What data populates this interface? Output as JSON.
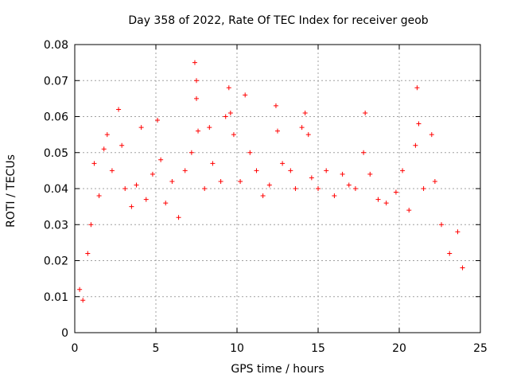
{
  "chart_data": {
    "type": "scatter",
    "title": "Day 358 of 2022, Rate Of TEC Index for receiver geob",
    "xlabel": "GPS time / hours",
    "ylabel": "ROTI / TECUs",
    "xlim": [
      0,
      25
    ],
    "ylim": [
      0,
      0.08
    ],
    "x_ticks": [
      0,
      5,
      10,
      15,
      20,
      25
    ],
    "y_ticks": [
      0,
      0.01,
      0.02,
      0.03,
      0.04,
      0.05,
      0.06,
      0.07,
      0.08
    ],
    "x_tick_labels": [
      "0",
      "5",
      "10",
      "15",
      "20",
      "25"
    ],
    "y_tick_labels": [
      "0",
      "0.01",
      "0.02",
      "0.03",
      "0.04",
      "0.05",
      "0.06",
      "0.07",
      "0.08"
    ],
    "grid": true,
    "marker": "+",
    "color": "#ff0000",
    "series": [
      {
        "values": [
          [
            0.3,
            0.012
          ],
          [
            0.5,
            0.009
          ],
          [
            0.8,
            0.022
          ],
          [
            1.0,
            0.03
          ],
          [
            1.2,
            0.047
          ],
          [
            1.5,
            0.038
          ],
          [
            1.8,
            0.051
          ],
          [
            2.0,
            0.055
          ],
          [
            2.3,
            0.045
          ],
          [
            2.7,
            0.062
          ],
          [
            2.9,
            0.052
          ],
          [
            3.1,
            0.04
          ],
          [
            3.5,
            0.035
          ],
          [
            3.8,
            0.041
          ],
          [
            4.1,
            0.057
          ],
          [
            4.4,
            0.037
          ],
          [
            4.8,
            0.044
          ],
          [
            5.1,
            0.059
          ],
          [
            5.3,
            0.048
          ],
          [
            5.6,
            0.036
          ],
          [
            6.0,
            0.042
          ],
          [
            6.4,
            0.032
          ],
          [
            6.8,
            0.045
          ],
          [
            7.2,
            0.05
          ],
          [
            7.4,
            0.075
          ],
          [
            7.5,
            0.07
          ],
          [
            7.5,
            0.065
          ],
          [
            7.6,
            0.056
          ],
          [
            8.0,
            0.04
          ],
          [
            8.3,
            0.057
          ],
          [
            8.5,
            0.047
          ],
          [
            9.0,
            0.042
          ],
          [
            9.3,
            0.06
          ],
          [
            9.5,
            0.068
          ],
          [
            9.6,
            0.061
          ],
          [
            9.8,
            0.055
          ],
          [
            10.2,
            0.042
          ],
          [
            10.5,
            0.066
          ],
          [
            10.8,
            0.05
          ],
          [
            11.2,
            0.045
          ],
          [
            11.6,
            0.038
          ],
          [
            12.0,
            0.041
          ],
          [
            12.4,
            0.063
          ],
          [
            12.5,
            0.056
          ],
          [
            12.8,
            0.047
          ],
          [
            13.3,
            0.045
          ],
          [
            13.6,
            0.04
          ],
          [
            14.0,
            0.057
          ],
          [
            14.2,
            0.061
          ],
          [
            14.4,
            0.055
          ],
          [
            14.6,
            0.043
          ],
          [
            15.0,
            0.04
          ],
          [
            15.5,
            0.045
          ],
          [
            16.0,
            0.038
          ],
          [
            16.5,
            0.044
          ],
          [
            16.9,
            0.041
          ],
          [
            17.3,
            0.04
          ],
          [
            17.8,
            0.05
          ],
          [
            17.9,
            0.061
          ],
          [
            18.2,
            0.044
          ],
          [
            18.7,
            0.037
          ],
          [
            19.2,
            0.036
          ],
          [
            19.8,
            0.039
          ],
          [
            20.2,
            0.045
          ],
          [
            20.6,
            0.034
          ],
          [
            21.0,
            0.052
          ],
          [
            21.1,
            0.068
          ],
          [
            21.2,
            0.058
          ],
          [
            21.5,
            0.04
          ],
          [
            22.0,
            0.055
          ],
          [
            22.2,
            0.042
          ],
          [
            22.6,
            0.03
          ],
          [
            23.1,
            0.022
          ],
          [
            23.6,
            0.028
          ],
          [
            23.9,
            0.018
          ]
        ]
      }
    ]
  }
}
